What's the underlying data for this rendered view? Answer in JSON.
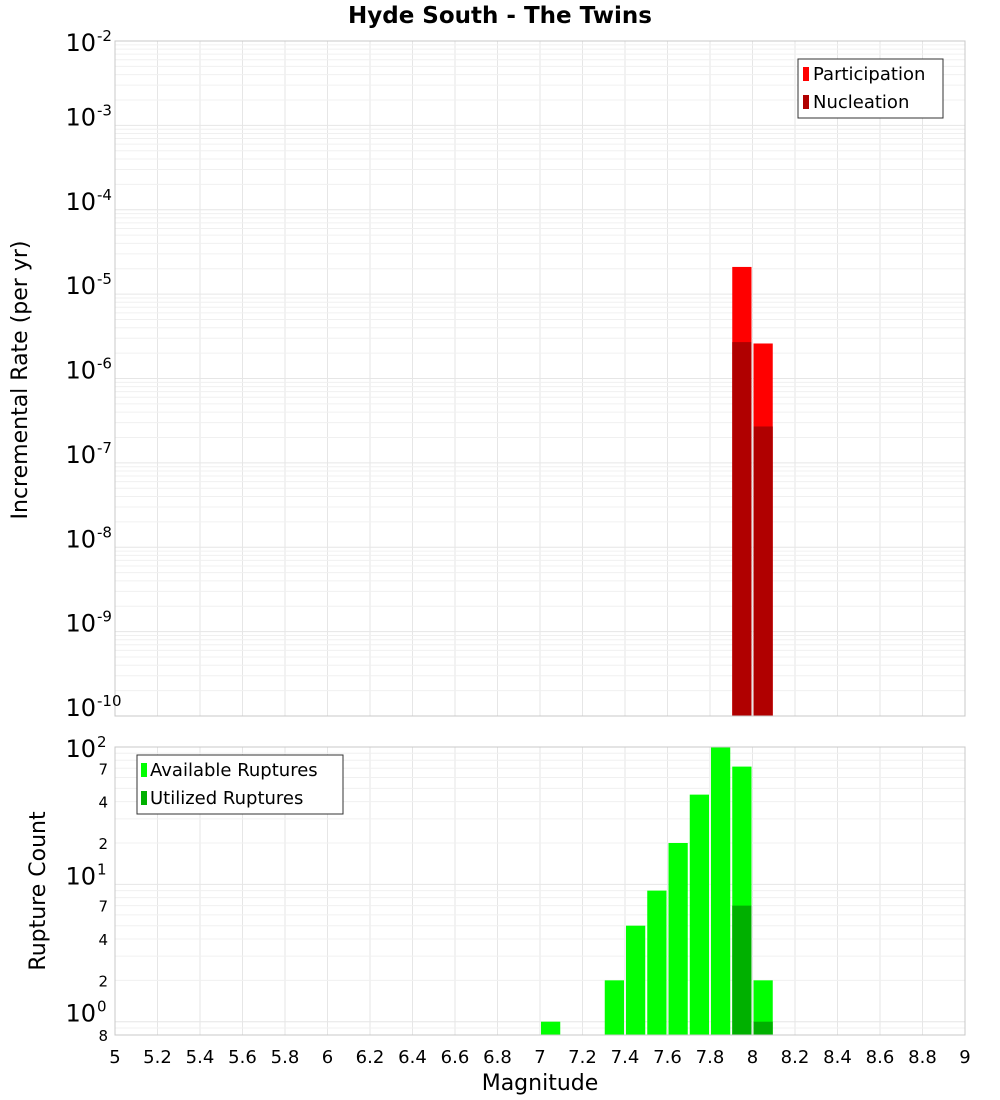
{
  "chart_data": [
    {
      "type": "bar",
      "title": "Hyde South - The Twins",
      "xlabel": "Magnitude",
      "ylabel": "Incremental Rate (per yr)",
      "xlim": [
        5,
        9
      ],
      "ylim": [
        1e-10,
        0.01
      ],
      "yscale": "log",
      "bin_width": 0.1,
      "x_ticks": [
        "5",
        "5.2",
        "5.4",
        "5.6",
        "5.8",
        "6",
        "6.2",
        "6.4",
        "6.6",
        "6.8",
        "7",
        "7.2",
        "7.4",
        "7.6",
        "7.8",
        "8",
        "8.2",
        "8.4",
        "8.6",
        "8.8",
        "9"
      ],
      "y_ticks": [
        {
          "base": "10",
          "exp": "-2"
        },
        {
          "base": "10",
          "exp": "-3"
        },
        {
          "base": "10",
          "exp": "-4"
        },
        {
          "base": "10",
          "exp": "-5"
        },
        {
          "base": "10",
          "exp": "-6"
        },
        {
          "base": "10",
          "exp": "-7"
        },
        {
          "base": "10",
          "exp": "-8"
        },
        {
          "base": "10",
          "exp": "-9"
        },
        {
          "base": "10",
          "exp": "-10"
        }
      ],
      "legend_position": "top-right",
      "series": [
        {
          "name": "Participation",
          "color": "#ff0000",
          "x": [
            7.95,
            8.05
          ],
          "values": [
            2.1e-05,
            2.6e-06
          ]
        },
        {
          "name": "Nucleation",
          "color": "#b00000",
          "x": [
            7.95,
            8.05
          ],
          "values": [
            2.7e-06,
            2.7e-07
          ]
        }
      ]
    },
    {
      "type": "bar",
      "xlabel": "Magnitude",
      "ylabel": "Rupture Count",
      "xlim": [
        5,
        9
      ],
      "ylim": [
        0.8,
        100
      ],
      "yscale": "log",
      "bin_width": 0.1,
      "x_ticks": [
        "5",
        "5.2",
        "5.4",
        "5.6",
        "5.8",
        "6",
        "6.2",
        "6.4",
        "6.6",
        "6.8",
        "7",
        "7.2",
        "7.4",
        "7.6",
        "7.8",
        "8",
        "8.2",
        "8.4",
        "8.6",
        "8.8",
        "9"
      ],
      "y_ticks": [
        {
          "base": "10",
          "exp": "2"
        },
        {
          "base": "10",
          "exp": "1"
        },
        {
          "base": "10",
          "exp": "0"
        }
      ],
      "y_minor_ticks": [
        {
          "value": 70,
          "label": "7"
        },
        {
          "value": 40,
          "label": "4"
        },
        {
          "value": 20,
          "label": "2"
        },
        {
          "value": 7,
          "label": "7"
        },
        {
          "value": 4,
          "label": "4"
        },
        {
          "value": 2,
          "label": "2"
        },
        {
          "value": 0.8,
          "label": "8"
        }
      ],
      "legend_position": "top-left",
      "series": [
        {
          "name": "Available Ruptures",
          "color": "#00ff00",
          "x": [
            7.05,
            7.35,
            7.45,
            7.55,
            7.65,
            7.75,
            7.85,
            7.95,
            8.05
          ],
          "values": [
            1,
            2,
            5,
            9,
            20,
            45,
            100,
            72,
            2
          ]
        },
        {
          "name": "Utilized Ruptures",
          "color": "#00b000",
          "x": [
            7.95,
            8.05
          ],
          "values": [
            7,
            1
          ]
        }
      ]
    }
  ]
}
